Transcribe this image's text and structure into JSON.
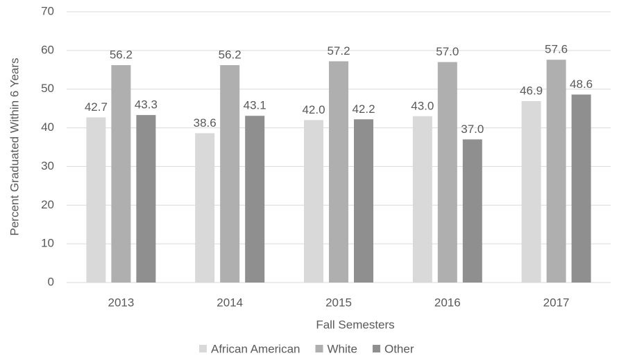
{
  "chart_data": {
    "type": "bar",
    "x_label": "Fall Semesters",
    "y_label": "Percent Graduated Within 6 Years",
    "categories": [
      "2013",
      "2014",
      "2015",
      "2016",
      "2017"
    ],
    "series": [
      {
        "name": "African American",
        "color": "#d9d9d9",
        "values": [
          42.7,
          38.6,
          42,
          43,
          46.9
        ],
        "value_labels": [
          "42.7",
          "38.6",
          "42.0",
          "43.0",
          "46.9"
        ]
      },
      {
        "name": "White",
        "color": "#afafaf",
        "values": [
          56.2,
          56.2,
          57.2,
          57,
          57.6
        ],
        "value_labels": [
          "56.2",
          "56.2",
          "57.2",
          "57.0",
          "57.6"
        ]
      },
      {
        "name": "Other",
        "color": "#8f8f8f",
        "values": [
          43.3,
          43.1,
          42.2,
          37,
          48.6
        ],
        "value_labels": [
          "43.3",
          "43.1",
          "42.2",
          "37.0",
          "48.6"
        ]
      }
    ],
    "ylim": [
      0,
      70
    ],
    "yticks": [
      0,
      10,
      20,
      30,
      40,
      50,
      60,
      70
    ],
    "grid": true,
    "legend": "bottom"
  }
}
